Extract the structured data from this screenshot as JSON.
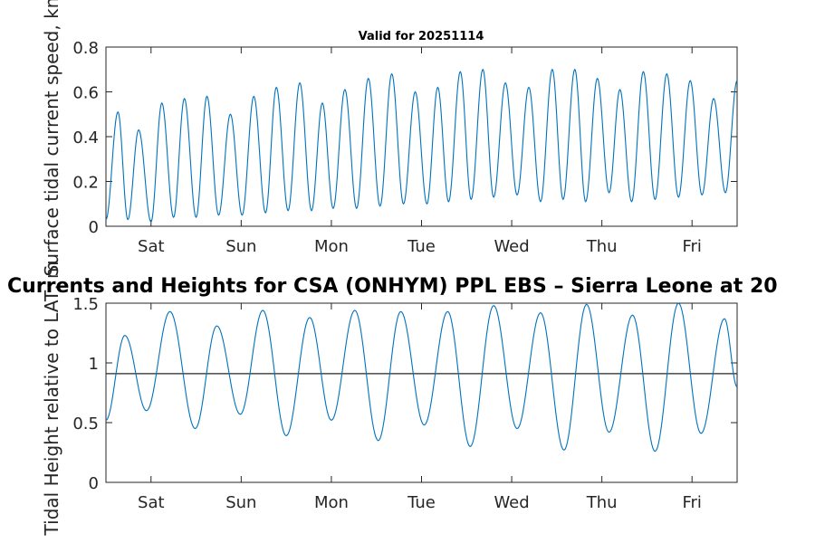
{
  "colors": {
    "series": "#0072bd",
    "reference": "#262626",
    "axes": "#262626",
    "background": "#ffffff"
  },
  "chart_data": [
    {
      "type": "line",
      "title": "Valid for 20251114",
      "xlabel": "",
      "ylabel": "Surface tidal current speed, kn",
      "ylim": [
        0,
        0.8
      ],
      "xlim": [
        0,
        7
      ],
      "yticks": [
        0,
        0.2,
        0.4,
        0.6,
        0.8
      ],
      "ytick_labels": [
        "0",
        "0.2",
        "0.4",
        "0.6",
        "0.8"
      ],
      "xticks": [
        0.5,
        1.5,
        2.5,
        3.5,
        4.5,
        5.5,
        6.5
      ],
      "xtick_labels": [
        "Sat",
        "Sun",
        "Mon",
        "Tue",
        "Wed",
        "Thu",
        "Fri"
      ],
      "series": [
        {
          "name": "current speed",
          "x": [
            0,
            0.133,
            0.243,
            0.363,
            0.5,
            0.62,
            0.75,
            0.87,
            1.0,
            1.12,
            1.25,
            1.38,
            1.51,
            1.64,
            1.77,
            1.89,
            2.02,
            2.15,
            2.28,
            2.4,
            2.52,
            2.65,
            2.78,
            2.91,
            3.04,
            3.17,
            3.3,
            3.43,
            3.56,
            3.68,
            3.8,
            3.93,
            4.05,
            4.18,
            4.3,
            4.43,
            4.56,
            4.69,
            4.82,
            4.95,
            5.07,
            5.2,
            5.32,
            5.45,
            5.58,
            5.7,
            5.83,
            5.96,
            6.09,
            6.22,
            6.35,
            6.48,
            6.61,
            6.74,
            6.87,
            7.0
          ],
          "values": [
            0.03,
            0.51,
            0.03,
            0.43,
            0.02,
            0.55,
            0.04,
            0.57,
            0.04,
            0.58,
            0.05,
            0.5,
            0.05,
            0.58,
            0.06,
            0.62,
            0.07,
            0.64,
            0.07,
            0.55,
            0.08,
            0.61,
            0.08,
            0.66,
            0.09,
            0.68,
            0.1,
            0.6,
            0.1,
            0.62,
            0.11,
            0.69,
            0.12,
            0.7,
            0.13,
            0.64,
            0.14,
            0.62,
            0.11,
            0.7,
            0.12,
            0.7,
            0.11,
            0.66,
            0.15,
            0.61,
            0.11,
            0.69,
            0.12,
            0.68,
            0.13,
            0.65,
            0.14,
            0.57,
            0.15,
            0.65
          ]
        }
      ]
    },
    {
      "type": "line",
      "title": "Currents and Heights for CSA (ONHYM) PPL EBS  – Sierra Leone at 20",
      "xlabel": "",
      "ylabel": "Tidal Height relative to LAT, m",
      "ylim": [
        0,
        1.5
      ],
      "xlim": [
        0,
        7
      ],
      "yticks": [
        0,
        0.5,
        1,
        1.5
      ],
      "ytick_labels": [
        "0",
        "0.5",
        "1",
        "1.5"
      ],
      "xticks": [
        0.5,
        1.5,
        2.5,
        3.5,
        4.5,
        5.5,
        6.5
      ],
      "xtick_labels": [
        "Sat",
        "Sun",
        "Mon",
        "Tue",
        "Wed",
        "Thu",
        "Fri"
      ],
      "reference_line": 0.91,
      "series": [
        {
          "name": "tidal height",
          "x": [
            0,
            0.21,
            0.45,
            0.71,
            0.99,
            1.23,
            1.49,
            1.74,
            2.0,
            2.26,
            2.5,
            2.76,
            3.02,
            3.27,
            3.53,
            3.79,
            4.04,
            4.3,
            4.56,
            4.82,
            5.08,
            5.33,
            5.58,
            5.84,
            6.09,
            6.35,
            6.6,
            6.86,
            7.0
          ],
          "values": [
            0.52,
            1.23,
            0.6,
            1.43,
            0.45,
            1.31,
            0.57,
            1.44,
            0.39,
            1.38,
            0.52,
            1.44,
            0.35,
            1.43,
            0.48,
            1.43,
            0.3,
            1.48,
            0.45,
            1.42,
            0.27,
            1.49,
            0.42,
            1.4,
            0.26,
            1.5,
            0.41,
            1.37,
            0.8
          ]
        }
      ]
    }
  ]
}
